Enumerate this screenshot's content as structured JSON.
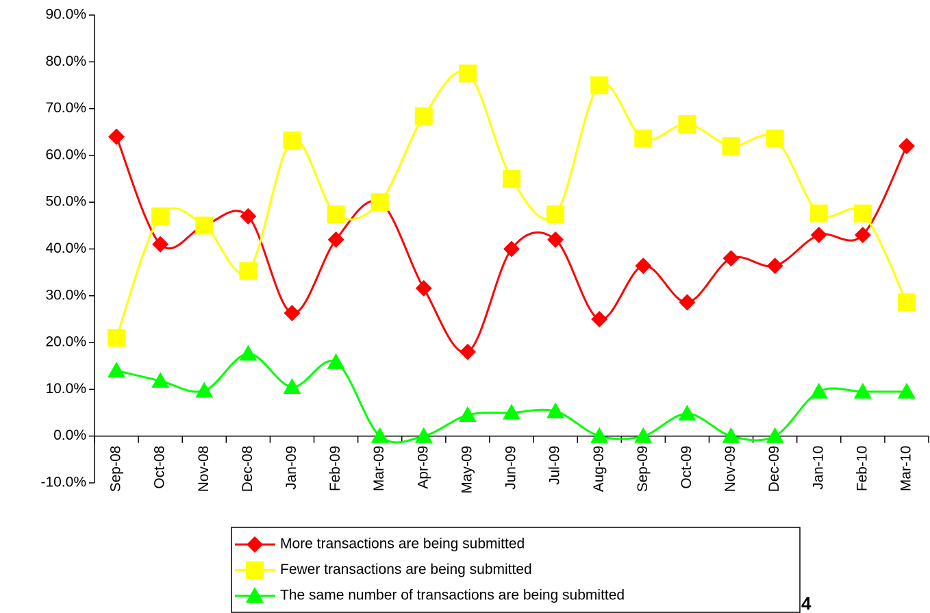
{
  "chart_data": {
    "type": "line",
    "categories": [
      "Sep-08",
      "Oct-08",
      "Nov-08",
      "Dec-08",
      "Jan-09",
      "Feb-09",
      "Mar-09",
      "Apr-09",
      "May-09",
      "Jun-09",
      "Jul-09",
      "Aug-09",
      "Sep-09",
      "Oct-09",
      "Nov-09",
      "Dec-09",
      "Jan-10",
      "Feb-10",
      "Mar-10"
    ],
    "series": [
      {
        "name": "More transactions are being submitted",
        "color": "#ff0000",
        "marker": "diamond",
        "values": [
          64,
          41,
          45,
          47,
          26.3,
          42,
          50,
          31.6,
          18,
          40,
          42,
          25,
          36.4,
          28.6,
          38,
          36.4,
          43,
          43,
          62
        ]
      },
      {
        "name": "Fewer transactions are being submitted",
        "color": "#ffff00",
        "marker": "square",
        "values": [
          21,
          47,
          45,
          35.3,
          63.2,
          47.4,
          50,
          68.4,
          77.5,
          55,
          47.4,
          75,
          63.6,
          66.7,
          62,
          63.6,
          47.6,
          47.6,
          28.6
        ]
      },
      {
        "name": "The same number of transactions are being submitted",
        "color": "#00ff00",
        "marker": "triangle",
        "values": [
          14,
          11.8,
          9.7,
          17.6,
          10.5,
          15.8,
          0,
          0,
          4.5,
          5,
          5.3,
          0,
          0,
          4.8,
          0,
          0,
          9.5,
          9.5,
          9.5
        ]
      }
    ],
    "ylim": [
      -10,
      90
    ],
    "yticks": [
      {
        "value": -10,
        "label": "-10.0%"
      },
      {
        "value": 0,
        "label": "0.0%"
      },
      {
        "value": 10,
        "label": "10.0%"
      },
      {
        "value": 20,
        "label": "20.0%"
      },
      {
        "value": 30,
        "label": "30.0%"
      },
      {
        "value": 40,
        "label": "40.0%"
      },
      {
        "value": 50,
        "label": "50.0%"
      },
      {
        "value": 60,
        "label": "60.0%"
      },
      {
        "value": 70,
        "label": "70.0%"
      },
      {
        "value": 80,
        "label": "80.0%"
      },
      {
        "value": 90,
        "label": "90.0%"
      }
    ],
    "smooth": true,
    "annotation": "4"
  }
}
